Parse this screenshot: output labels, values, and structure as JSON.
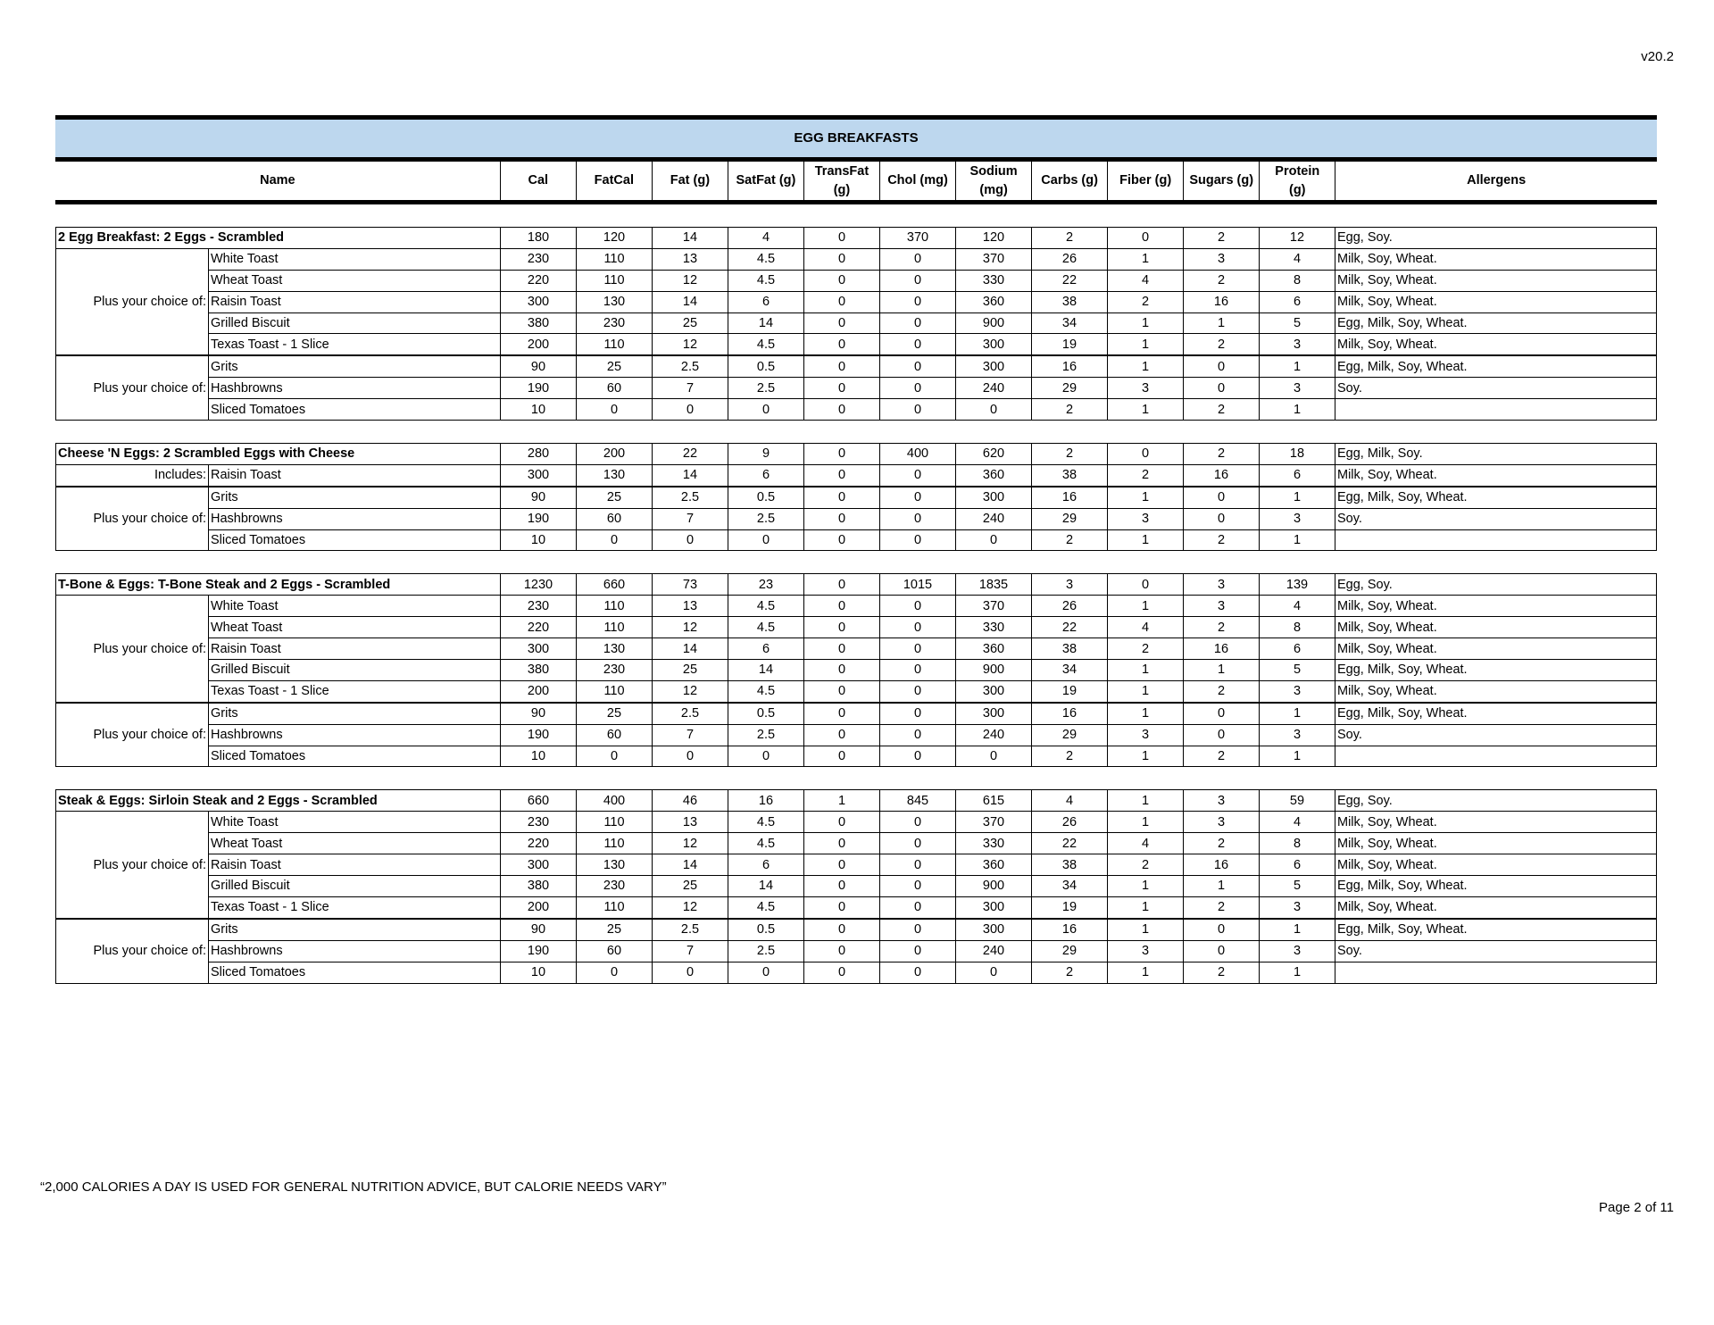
{
  "version": "v20.2",
  "title": "EGG BREAKFASTS",
  "columns": [
    "Name",
    "Cal",
    "FatCal",
    "Fat (g)",
    "SatFat (g)",
    "TransFat\n(g)",
    "Chol (mg)",
    "Sodium\n(mg)",
    "Carbs (g)",
    "Fiber (g)",
    "Sugars (g)",
    "Protein\n(g)",
    "Allergens"
  ],
  "sections": [
    {
      "header": {
        "name": "2 Egg Breakfast: 2 Eggs - Scrambled",
        "values": [
          "180",
          "120",
          "14",
          "4",
          "0",
          "370",
          "120",
          "2",
          "0",
          "2",
          "12"
        ],
        "allergens": "Egg, Soy."
      },
      "groups": [
        {
          "label": "Plus your choice of:",
          "items": [
            {
              "name": "White Toast",
              "values": [
                "230",
                "110",
                "13",
                "4.5",
                "0",
                "0",
                "370",
                "26",
                "1",
                "3",
                "4"
              ],
              "allergens": "Milk, Soy, Wheat."
            },
            {
              "name": "Wheat Toast",
              "values": [
                "220",
                "110",
                "12",
                "4.5",
                "0",
                "0",
                "330",
                "22",
                "4",
                "2",
                "8"
              ],
              "allergens": "Milk, Soy, Wheat."
            },
            {
              "name": "Raisin Toast",
              "values": [
                "300",
                "130",
                "14",
                "6",
                "0",
                "0",
                "360",
                "38",
                "2",
                "16",
                "6"
              ],
              "allergens": "Milk, Soy, Wheat."
            },
            {
              "name": "Grilled Biscuit",
              "values": [
                "380",
                "230",
                "25",
                "14",
                "0",
                "0",
                "900",
                "34",
                "1",
                "1",
                "5"
              ],
              "allergens": "Egg, Milk, Soy, Wheat."
            },
            {
              "name": "Texas Toast - 1 Slice",
              "values": [
                "200",
                "110",
                "12",
                "4.5",
                "0",
                "0",
                "300",
                "19",
                "1",
                "2",
                "3"
              ],
              "allergens": "Milk, Soy, Wheat."
            }
          ]
        },
        {
          "label": "Plus your choice of:",
          "items": [
            {
              "name": "Grits",
              "values": [
                "90",
                "25",
                "2.5",
                "0.5",
                "0",
                "0",
                "300",
                "16",
                "1",
                "0",
                "1"
              ],
              "allergens": "Egg, Milk, Soy, Wheat."
            },
            {
              "name": "Hashbrowns",
              "values": [
                "190",
                "60",
                "7",
                "2.5",
                "0",
                "0",
                "240",
                "29",
                "3",
                "0",
                "3"
              ],
              "allergens": "Soy."
            },
            {
              "name": "Sliced Tomatoes",
              "values": [
                "10",
                "0",
                "0",
                "0",
                "0",
                "0",
                "0",
                "2",
                "1",
                "2",
                "1"
              ],
              "allergens": ""
            }
          ]
        }
      ]
    },
    {
      "header": {
        "name": "Cheese 'N Eggs: 2 Scrambled Eggs with Cheese",
        "values": [
          "280",
          "200",
          "22",
          "9",
          "0",
          "400",
          "620",
          "2",
          "0",
          "2",
          "18"
        ],
        "allergens": "Egg, Milk, Soy."
      },
      "groups": [
        {
          "label": "Includes:",
          "items": [
            {
              "name": "Raisin Toast",
              "values": [
                "300",
                "130",
                "14",
                "6",
                "0",
                "0",
                "360",
                "38",
                "2",
                "16",
                "6"
              ],
              "allergens": "Milk, Soy, Wheat."
            }
          ]
        },
        {
          "label": "Plus your choice of:",
          "items": [
            {
              "name": "Grits",
              "values": [
                "90",
                "25",
                "2.5",
                "0.5",
                "0",
                "0",
                "300",
                "16",
                "1",
                "0",
                "1"
              ],
              "allergens": "Egg, Milk, Soy, Wheat."
            },
            {
              "name": "Hashbrowns",
              "values": [
                "190",
                "60",
                "7",
                "2.5",
                "0",
                "0",
                "240",
                "29",
                "3",
                "0",
                "3"
              ],
              "allergens": "Soy."
            },
            {
              "name": "Sliced Tomatoes",
              "values": [
                "10",
                "0",
                "0",
                "0",
                "0",
                "0",
                "0",
                "2",
                "1",
                "2",
                "1"
              ],
              "allergens": ""
            }
          ]
        }
      ]
    },
    {
      "header": {
        "name": "T-Bone & Eggs: T-Bone Steak and 2 Eggs - Scrambled",
        "values": [
          "1230",
          "660",
          "73",
          "23",
          "0",
          "1015",
          "1835",
          "3",
          "0",
          "3",
          "139"
        ],
        "allergens": "Egg, Soy."
      },
      "groups": [
        {
          "label": "Plus your choice of:",
          "items": [
            {
              "name": "White Toast",
              "values": [
                "230",
                "110",
                "13",
                "4.5",
                "0",
                "0",
                "370",
                "26",
                "1",
                "3",
                "4"
              ],
              "allergens": "Milk, Soy, Wheat."
            },
            {
              "name": "Wheat Toast",
              "values": [
                "220",
                "110",
                "12",
                "4.5",
                "0",
                "0",
                "330",
                "22",
                "4",
                "2",
                "8"
              ],
              "allergens": "Milk, Soy, Wheat."
            },
            {
              "name": "Raisin Toast",
              "values": [
                "300",
                "130",
                "14",
                "6",
                "0",
                "0",
                "360",
                "38",
                "2",
                "16",
                "6"
              ],
              "allergens": "Milk, Soy, Wheat."
            },
            {
              "name": "Grilled Biscuit",
              "values": [
                "380",
                "230",
                "25",
                "14",
                "0",
                "0",
                "900",
                "34",
                "1",
                "1",
                "5"
              ],
              "allergens": "Egg, Milk, Soy, Wheat."
            },
            {
              "name": "Texas Toast - 1 Slice",
              "values": [
                "200",
                "110",
                "12",
                "4.5",
                "0",
                "0",
                "300",
                "19",
                "1",
                "2",
                "3"
              ],
              "allergens": "Milk, Soy, Wheat."
            }
          ]
        },
        {
          "label": "Plus your choice of:",
          "items": [
            {
              "name": "Grits",
              "values": [
                "90",
                "25",
                "2.5",
                "0.5",
                "0",
                "0",
                "300",
                "16",
                "1",
                "0",
                "1"
              ],
              "allergens": "Egg, Milk, Soy, Wheat."
            },
            {
              "name": "Hashbrowns",
              "values": [
                "190",
                "60",
                "7",
                "2.5",
                "0",
                "0",
                "240",
                "29",
                "3",
                "0",
                "3"
              ],
              "allergens": "Soy."
            },
            {
              "name": "Sliced Tomatoes",
              "values": [
                "10",
                "0",
                "0",
                "0",
                "0",
                "0",
                "0",
                "2",
                "1",
                "2",
                "1"
              ],
              "allergens": ""
            }
          ]
        }
      ]
    },
    {
      "header": {
        "name": "Steak & Eggs: Sirloin Steak and 2 Eggs - Scrambled",
        "values": [
          "660",
          "400",
          "46",
          "16",
          "1",
          "845",
          "615",
          "4",
          "1",
          "3",
          "59"
        ],
        "allergens": "Egg, Soy."
      },
      "groups": [
        {
          "label": "Plus your choice of:",
          "items": [
            {
              "name": "White Toast",
              "values": [
                "230",
                "110",
                "13",
                "4.5",
                "0",
                "0",
                "370",
                "26",
                "1",
                "3",
                "4"
              ],
              "allergens": "Milk, Soy, Wheat."
            },
            {
              "name": "Wheat Toast",
              "values": [
                "220",
                "110",
                "12",
                "4.5",
                "0",
                "0",
                "330",
                "22",
                "4",
                "2",
                "8"
              ],
              "allergens": "Milk, Soy, Wheat."
            },
            {
              "name": "Raisin Toast",
              "values": [
                "300",
                "130",
                "14",
                "6",
                "0",
                "0",
                "360",
                "38",
                "2",
                "16",
                "6"
              ],
              "allergens": "Milk, Soy, Wheat."
            },
            {
              "name": "Grilled Biscuit",
              "values": [
                "380",
                "230",
                "25",
                "14",
                "0",
                "0",
                "900",
                "34",
                "1",
                "1",
                "5"
              ],
              "allergens": "Egg, Milk, Soy, Wheat."
            },
            {
              "name": "Texas Toast - 1 Slice",
              "values": [
                "200",
                "110",
                "12",
                "4.5",
                "0",
                "0",
                "300",
                "19",
                "1",
                "2",
                "3"
              ],
              "allergens": "Milk, Soy, Wheat."
            }
          ]
        },
        {
          "label": "Plus your choice of:",
          "items": [
            {
              "name": "Grits",
              "values": [
                "90",
                "25",
                "2.5",
                "0.5",
                "0",
                "0",
                "300",
                "16",
                "1",
                "0",
                "1"
              ],
              "allergens": "Egg, Milk, Soy, Wheat."
            },
            {
              "name": "Hashbrowns",
              "values": [
                "190",
                "60",
                "7",
                "2.5",
                "0",
                "0",
                "240",
                "29",
                "3",
                "0",
                "3"
              ],
              "allergens": "Soy."
            },
            {
              "name": "Sliced Tomatoes",
              "values": [
                "10",
                "0",
                "0",
                "0",
                "0",
                "0",
                "0",
                "2",
                "1",
                "2",
                "1"
              ],
              "allergens": ""
            }
          ]
        }
      ]
    }
  ],
  "footnote": "“2,000 CALORIES A DAY IS USED FOR GENERAL NUTRITION ADVICE, BUT CALORIE NEEDS VARY”",
  "page_label": "Page 2 of 11"
}
